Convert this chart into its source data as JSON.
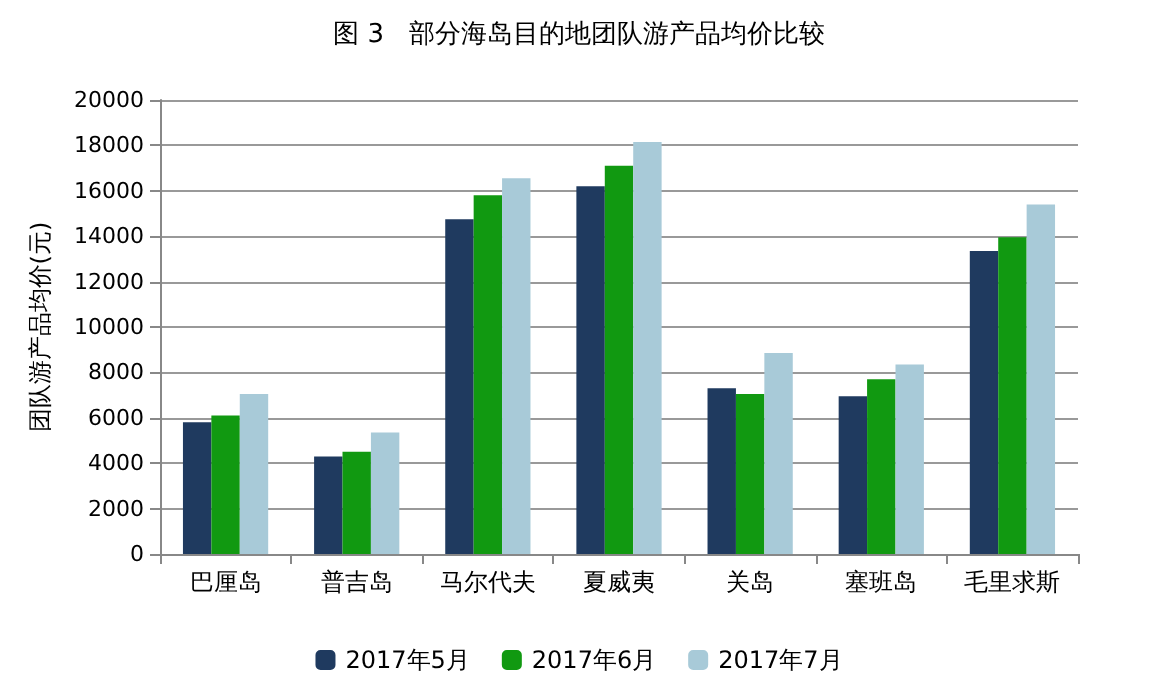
{
  "chart_data": {
    "type": "bar",
    "title": "图 3   部分海岛目的地团队游产品均价比较",
    "ylabel": "团队游产品均价(元)",
    "categories": [
      "巴厘岛",
      "普吉岛",
      "马尔代夫",
      "夏威夷",
      "关岛",
      "塞班岛",
      "毛里求斯"
    ],
    "series": [
      {
        "name": "2017年5月",
        "color": "#1f3a5f",
        "values": [
          5800,
          4300,
          14750,
          16200,
          7300,
          6950,
          13350
        ]
      },
      {
        "name": "2017年6月",
        "color": "#119911",
        "values": [
          6100,
          4500,
          15800,
          17100,
          7050,
          7700,
          13950
        ]
      },
      {
        "name": "2017年7月",
        "color": "#a8cad8",
        "values": [
          7050,
          5350,
          16550,
          18150,
          8850,
          8350,
          15400
        ]
      }
    ],
    "ylim": [
      0,
      20000
    ],
    "yticks": [
      0,
      2000,
      4000,
      6000,
      8000,
      10000,
      12000,
      14000,
      16000,
      18000,
      20000
    ],
    "grid": "y",
    "legend": "bottom"
  }
}
